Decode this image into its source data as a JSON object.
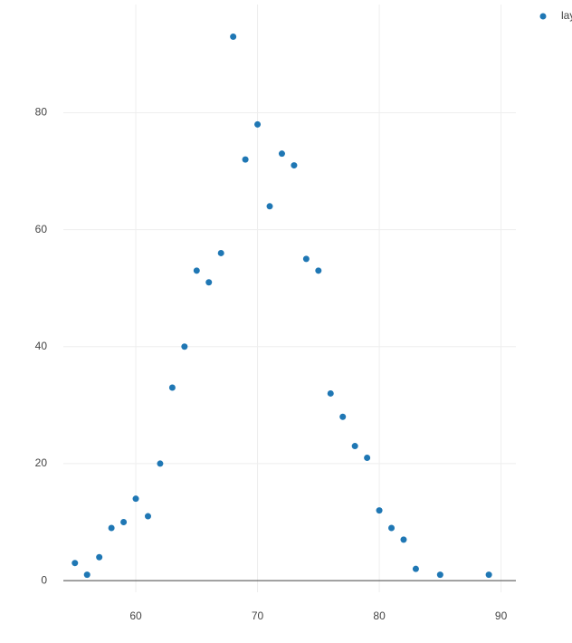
{
  "chart_data": {
    "type": "scatter",
    "series": [
      {
        "name": "lay",
        "color": "#1f77b4",
        "x": [
          55,
          56,
          57,
          58,
          59,
          60,
          61,
          62,
          63,
          64,
          65,
          66,
          67,
          68,
          69,
          70,
          71,
          72,
          73,
          74,
          75,
          76,
          77,
          78,
          79,
          80,
          81,
          82,
          83,
          85,
          89
        ],
        "values": [
          3,
          1,
          4,
          9,
          10,
          14,
          11,
          20,
          33,
          40,
          53,
          51,
          56,
          93,
          72,
          78,
          64,
          73,
          71,
          55,
          53,
          32,
          28,
          23,
          21,
          12,
          9,
          7,
          2,
          1,
          1
        ]
      }
    ],
    "xlim": [
      54.05,
      91.22
    ],
    "xticks": [
      60,
      70,
      80,
      90
    ],
    "ylim": [
      -2,
      98.5
    ],
    "yticks": [
      0,
      20,
      40,
      60,
      80
    ],
    "grid": true,
    "legend": "top-right"
  }
}
